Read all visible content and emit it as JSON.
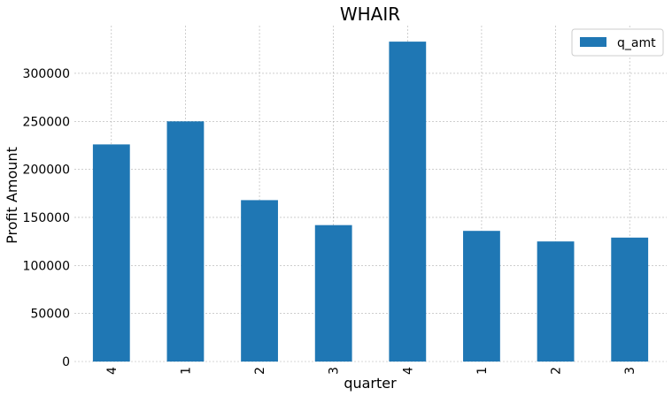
{
  "chart_data": {
    "type": "bar",
    "title": "WHAIR",
    "xlabel": "quarter",
    "ylabel": "Profit Amount",
    "categories": [
      "4",
      "1",
      "2",
      "3",
      "4",
      "1",
      "2",
      "3"
    ],
    "series": [
      {
        "name": "q_amt",
        "values": [
          226000,
          250000,
          168000,
          142000,
          333000,
          136000,
          125000,
          129000
        ]
      }
    ],
    "yticks": [
      0,
      50000,
      100000,
      150000,
      200000,
      250000,
      300000
    ],
    "ytick_labels": [
      "0",
      "50000",
      "100000",
      "150000",
      "200000",
      "250000",
      "300000"
    ],
    "ylim": [
      0,
      349650
    ],
    "grid": true,
    "legend_position": "top-right",
    "colors": {
      "bar": "#1f77b4",
      "grid": "#b0b0b0"
    }
  }
}
